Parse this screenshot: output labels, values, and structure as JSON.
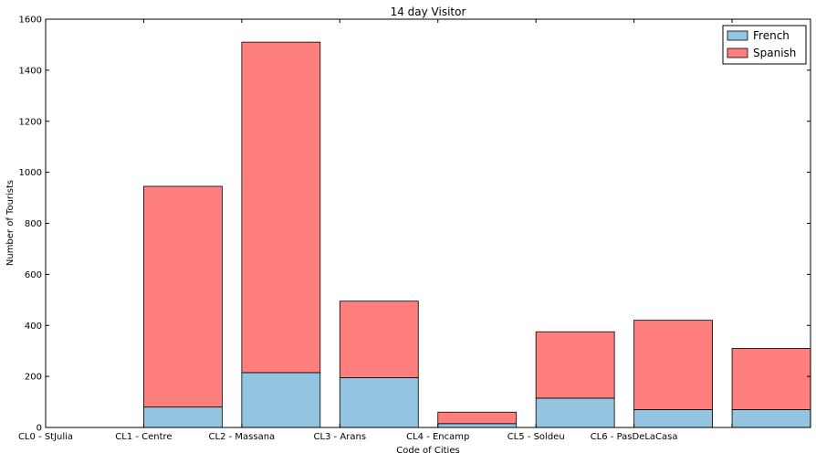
{
  "chart_data": {
    "type": "bar",
    "stacked": true,
    "title": "14 day Visitor",
    "xlabel": "Code of Cities",
    "ylabel": "Number of Tourists",
    "ylim": [
      0,
      1600
    ],
    "yticks": [
      0,
      200,
      400,
      600,
      800,
      1000,
      1200,
      1400,
      1600
    ],
    "categories": [
      "CL0 - StJulia",
      "CL1 - Centre",
      "CL2 - Massana",
      "CL3 - Arans",
      "CL4 - Encamp",
      "CL5 - Soldeu",
      "CL6 - PasDeLaCasa",
      ""
    ],
    "series": [
      {
        "name": "French",
        "color": "#93c5e0",
        "values": [
          0,
          80,
          215,
          195,
          15,
          115,
          70,
          70
        ]
      },
      {
        "name": "Spanish",
        "color": "#ff7f7f",
        "values": [
          0,
          865,
          1295,
          300,
          45,
          260,
          350,
          240
        ]
      }
    ],
    "grid": false,
    "legend_position": "top-right"
  }
}
